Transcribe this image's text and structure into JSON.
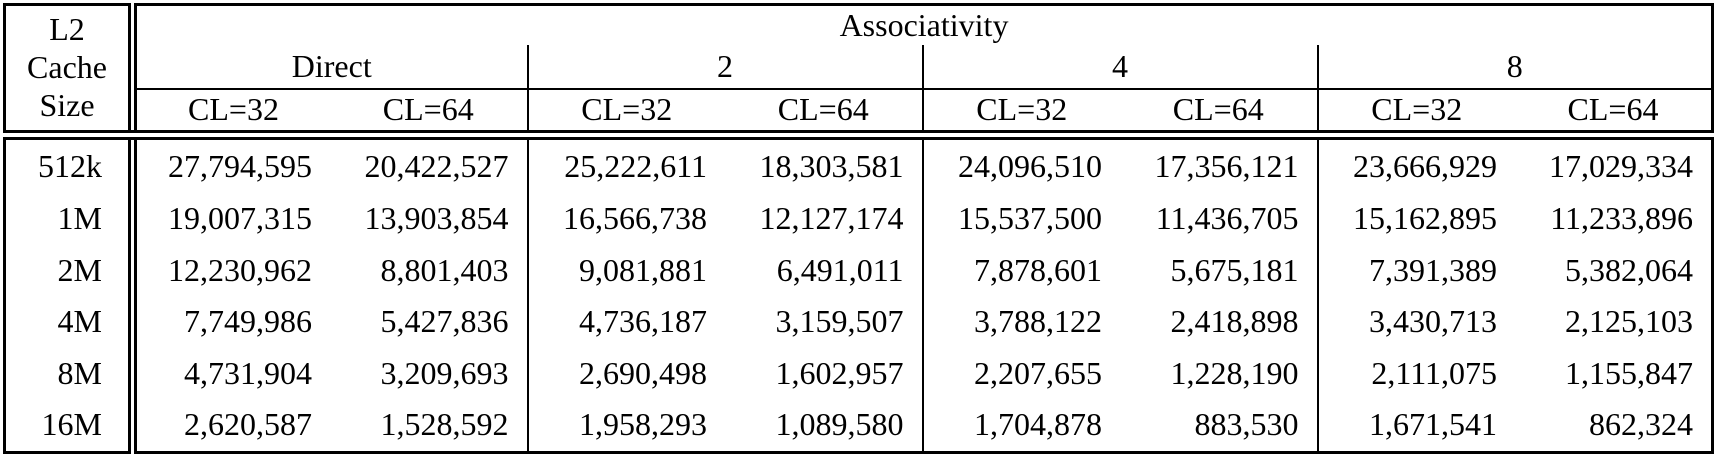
{
  "table": {
    "corner": {
      "line1": "L2",
      "line2": "Cache",
      "line3": "Size"
    },
    "top_header": "Associativity",
    "groups": [
      {
        "label": "Direct",
        "sub": [
          "CL=32",
          "CL=64"
        ]
      },
      {
        "label": "2",
        "sub": [
          "CL=32",
          "CL=64"
        ]
      },
      {
        "label": "4",
        "sub": [
          "CL=32",
          "CL=64"
        ]
      },
      {
        "label": "8",
        "sub": [
          "CL=32",
          "CL=64"
        ]
      }
    ],
    "rows": [
      {
        "label": "512k",
        "values": [
          "27,794,595",
          "20,422,527",
          "25,222,611",
          "18,303,581",
          "24,096,510",
          "17,356,121",
          "23,666,929",
          "17,029,334"
        ]
      },
      {
        "label": "1M",
        "values": [
          "19,007,315",
          "13,903,854",
          "16,566,738",
          "12,127,174",
          "15,537,500",
          "11,436,705",
          "15,162,895",
          "11,233,896"
        ]
      },
      {
        "label": "2M",
        "values": [
          "12,230,962",
          "8,801,403",
          "9,081,881",
          "6,491,011",
          "7,878,601",
          "5,675,181",
          "7,391,389",
          "5,382,064"
        ]
      },
      {
        "label": "4M",
        "values": [
          "7,749,986",
          "5,427,836",
          "4,736,187",
          "3,159,507",
          "3,788,122",
          "2,418,898",
          "3,430,713",
          "2,125,103"
        ]
      },
      {
        "label": "8M",
        "values": [
          "4,731,904",
          "3,209,693",
          "2,690,498",
          "1,602,957",
          "2,207,655",
          "1,228,190",
          "2,111,075",
          "1,155,847"
        ]
      },
      {
        "label": "16M",
        "values": [
          "2,620,587",
          "1,528,592",
          "1,958,293",
          "1,089,580",
          "1,704,878",
          "883,530",
          "1,671,541",
          "862,324"
        ]
      }
    ],
    "colors": {
      "border": "#000000",
      "background": "#ffffff",
      "text": "#000000"
    }
  }
}
